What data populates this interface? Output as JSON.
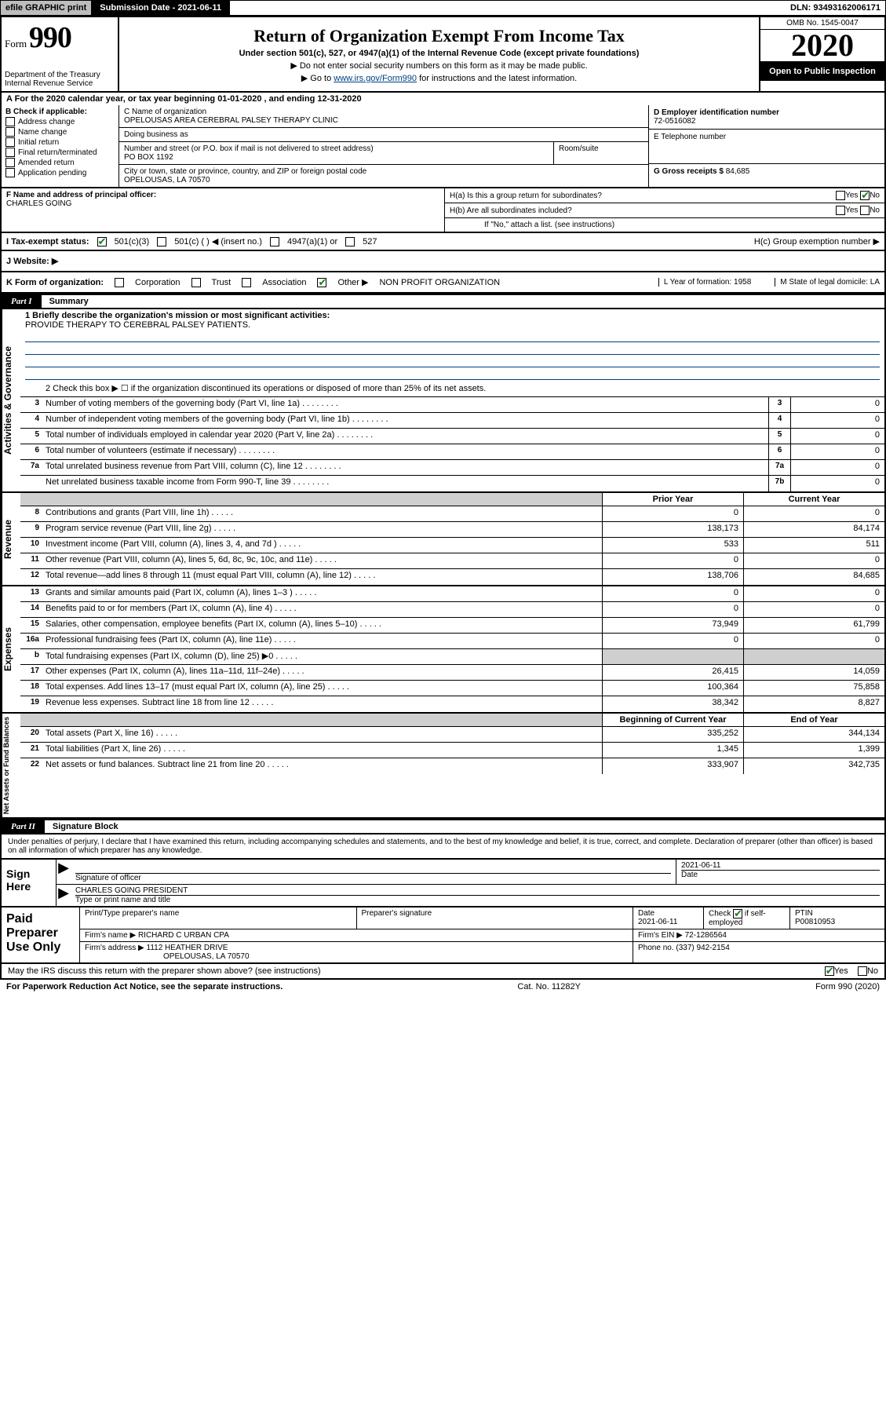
{
  "topbar": {
    "efile": "efile GRAPHIC print",
    "submission_label": "Submission Date - 2021-06-11",
    "dln": "DLN: 93493162006171"
  },
  "header": {
    "form_word": "Form",
    "form_num": "990",
    "dept": "Department of the Treasury\nInternal Revenue Service",
    "title": "Return of Organization Exempt From Income Tax",
    "sub1": "Under section 501(c), 527, or 4947(a)(1) of the Internal Revenue Code (except private foundations)",
    "sub2": "▶ Do not enter social security numbers on this form as it may be made public.",
    "sub3_pre": "▶ Go to ",
    "sub3_link": "www.irs.gov/Form990",
    "sub3_post": " for instructions and the latest information.",
    "omb": "OMB No. 1545-0047",
    "year": "2020",
    "open": "Open to Public Inspection"
  },
  "line_a": "A  For the 2020 calendar year, or tax year beginning 01-01-2020     , and ending 12-31-2020",
  "b": {
    "label": "B Check if applicable:",
    "items": [
      "Address change",
      "Name change",
      "Initial return",
      "Final return/terminated",
      "Amended return",
      "Application pending"
    ]
  },
  "c": {
    "name_lab": "C Name of organization",
    "name": "OPELOUSAS AREA CEREBRAL PALSEY THERAPY CLINIC",
    "dba_lab": "Doing business as",
    "addr_lab": "Number and street (or P.O. box if mail is not delivered to street address)",
    "room_lab": "Room/suite",
    "addr": "PO BOX 1192",
    "city_lab": "City or town, state or province, country, and ZIP or foreign postal code",
    "city": "OPELOUSAS, LA   70570"
  },
  "d": {
    "lab": "D Employer identification number",
    "val": "72-0516082"
  },
  "e": {
    "lab": "E Telephone number",
    "val": ""
  },
  "g": {
    "lab": "G Gross receipts $",
    "val": "84,685"
  },
  "f": {
    "lab": "F  Name and address of principal officer:",
    "val": "CHARLES GOING"
  },
  "h": {
    "a": "H(a)  Is this a group return for subordinates?",
    "b": "H(b)  Are all subordinates included?",
    "note": "If \"No,\" attach a list. (see instructions)",
    "c": "H(c)  Group exemption number ▶",
    "yes": "Yes",
    "no": "No"
  },
  "i": {
    "lab": "I    Tax-exempt status:",
    "c3": "501(c)(3)",
    "c": "501(c) (  ) ◀ (insert no.)",
    "a1": "4947(a)(1) or",
    "s527": "527"
  },
  "j": {
    "lab": "J    Website: ▶"
  },
  "k": {
    "lab": "K Form of organization:",
    "corp": "Corporation",
    "trust": "Trust",
    "assoc": "Association",
    "other": "Other ▶",
    "other_val": "NON PROFIT ORGANIZATION",
    "l": "L Year of formation: 1958",
    "m": "M State of legal domicile: LA"
  },
  "part1": {
    "label": "Part I",
    "title": "Summary"
  },
  "summary": {
    "tabs": [
      "Activities & Governance",
      "Revenue",
      "Expenses",
      "Net Assets or Fund Balances"
    ],
    "mission_lab": "1  Briefly describe the organization's mission or most significant activities:",
    "mission": "PROVIDE THERAPY TO CEREBRAL PALSEY PATIENTS.",
    "line2": "2    Check this box ▶ ☐  if the organization discontinued its operations or disposed of more than 25% of its net assets.",
    "rows_gov": [
      {
        "n": "3",
        "d": "Number of voting members of the governing body (Part VI, line 1a)",
        "c": "3",
        "v": "0"
      },
      {
        "n": "4",
        "d": "Number of independent voting members of the governing body (Part VI, line 1b)",
        "c": "4",
        "v": "0"
      },
      {
        "n": "5",
        "d": "Total number of individuals employed in calendar year 2020 (Part V, line 2a)",
        "c": "5",
        "v": "0"
      },
      {
        "n": "6",
        "d": "Total number of volunteers (estimate if necessary)",
        "c": "6",
        "v": "0"
      },
      {
        "n": "7a",
        "d": "Total unrelated business revenue from Part VIII, column (C), line 12",
        "c": "7a",
        "v": "0"
      },
      {
        "n": "",
        "d": "Net unrelated business taxable income from Form 990-T, line 39",
        "c": "7b",
        "v": "0"
      }
    ],
    "prior": "Prior Year",
    "current": "Current Year",
    "rows_rev": [
      {
        "n": "8",
        "d": "Contributions and grants (Part VIII, line 1h)",
        "p": "0",
        "c": "0"
      },
      {
        "n": "9",
        "d": "Program service revenue (Part VIII, line 2g)",
        "p": "138,173",
        "c": "84,174"
      },
      {
        "n": "10",
        "d": "Investment income (Part VIII, column (A), lines 3, 4, and 7d )",
        "p": "533",
        "c": "511"
      },
      {
        "n": "11",
        "d": "Other revenue (Part VIII, column (A), lines 5, 6d, 8c, 9c, 10c, and 11e)",
        "p": "0",
        "c": "0"
      },
      {
        "n": "12",
        "d": "Total revenue—add lines 8 through 11 (must equal Part VIII, column (A), line 12)",
        "p": "138,706",
        "c": "84,685"
      }
    ],
    "rows_exp": [
      {
        "n": "13",
        "d": "Grants and similar amounts paid (Part IX, column (A), lines 1–3 )",
        "p": "0",
        "c": "0"
      },
      {
        "n": "14",
        "d": "Benefits paid to or for members (Part IX, column (A), line 4)",
        "p": "0",
        "c": "0"
      },
      {
        "n": "15",
        "d": "Salaries, other compensation, employee benefits (Part IX, column (A), lines 5–10)",
        "p": "73,949",
        "c": "61,799"
      },
      {
        "n": "16a",
        "d": "Professional fundraising fees (Part IX, column (A), line 11e)",
        "p": "0",
        "c": "0"
      },
      {
        "n": "b",
        "d": "Total fundraising expenses (Part IX, column (D), line 25) ▶0",
        "p": "",
        "c": "",
        "shade": true
      },
      {
        "n": "17",
        "d": "Other expenses (Part IX, column (A), lines 11a–11d, 11f–24e)",
        "p": "26,415",
        "c": "14,059"
      },
      {
        "n": "18",
        "d": "Total expenses. Add lines 13–17 (must equal Part IX, column (A), line 25)",
        "p": "100,364",
        "c": "75,858"
      },
      {
        "n": "19",
        "d": "Revenue less expenses. Subtract line 18 from line 12",
        "p": "38,342",
        "c": "8,827"
      }
    ],
    "beg": "Beginning of Current Year",
    "end": "End of Year",
    "rows_net": [
      {
        "n": "20",
        "d": "Total assets (Part X, line 16)",
        "p": "335,252",
        "c": "344,134"
      },
      {
        "n": "21",
        "d": "Total liabilities (Part X, line 26)",
        "p": "1,345",
        "c": "1,399"
      },
      {
        "n": "22",
        "d": "Net assets or fund balances. Subtract line 21 from line 20",
        "p": "333,907",
        "c": "342,735"
      }
    ]
  },
  "part2": {
    "label": "Part II",
    "title": "Signature Block"
  },
  "sig": {
    "decl": "Under penalties of perjury, I declare that I have examined this return, including accompanying schedules and statements, and to the best of my knowledge and belief, it is true, correct, and complete. Declaration of preparer (other than officer) is based on all information of which preparer has any knowledge.",
    "sign_here": "Sign Here",
    "officer_sig": "Signature of officer",
    "date": "2021-06-11",
    "date_lab": "Date",
    "name_title": "CHARLES GOING  PRESIDENT",
    "name_lab": "Type or print name and title"
  },
  "paid": {
    "label": "Paid Preparer Use Only",
    "h_name": "Print/Type preparer's name",
    "h_sig": "Preparer's signature",
    "h_date": "Date",
    "h_check": "Check ☑ if self-employed",
    "h_ptin": "PTIN",
    "date": "2021-06-11",
    "ptin": "P00810953",
    "firm_lab": "Firm's name      ▶",
    "firm": "RICHARD C URBAN CPA",
    "ein_lab": "Firm's EIN ▶",
    "ein": "72-1286564",
    "addr_lab": "Firm's address ▶",
    "addr1": "1112 HEATHER DRIVE",
    "addr2": "OPELOUSAS, LA   70570",
    "phone_lab": "Phone no.",
    "phone": "(337) 942-2154"
  },
  "footer": {
    "discuss": "May the IRS discuss this return with the preparer shown above? (see instructions)",
    "yes": "Yes",
    "no": "No",
    "pra": "For Paperwork Reduction Act Notice, see the separate instructions.",
    "cat": "Cat. No. 11282Y",
    "form": "Form 990 (2020)"
  }
}
